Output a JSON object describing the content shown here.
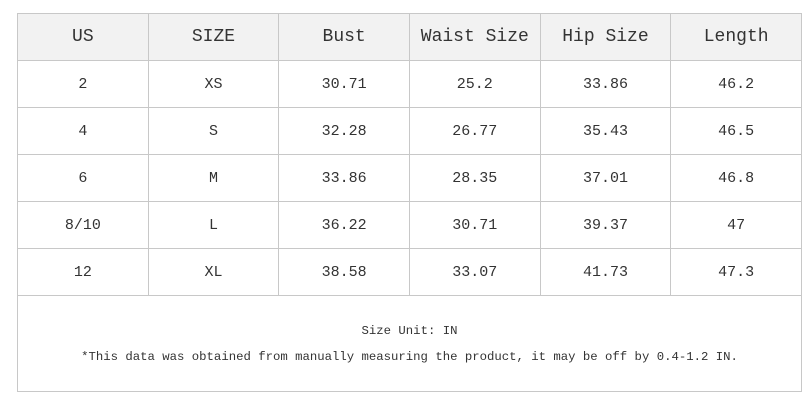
{
  "table": {
    "header": [
      "US",
      "SIZE",
      "Bust",
      "Waist Size",
      "Hip Size",
      "Length"
    ],
    "rows": [
      [
        "2",
        "XS",
        "30.71",
        "25.2",
        "33.86",
        "46.2"
      ],
      [
        "4",
        "S",
        "32.28",
        "26.77",
        "35.43",
        "46.5"
      ],
      [
        "6",
        "M",
        "33.86",
        "28.35",
        "37.01",
        "46.8"
      ],
      [
        "8/10",
        "L",
        "36.22",
        "30.71",
        "39.37",
        "47"
      ],
      [
        "12",
        "XL",
        "38.58",
        "33.07",
        "41.73",
        "47.3"
      ]
    ],
    "footer": {
      "unit": "Size Unit: IN",
      "note": "*This data was obtained from manually measuring the product, it may be off by 0.4-1.2 IN."
    }
  }
}
